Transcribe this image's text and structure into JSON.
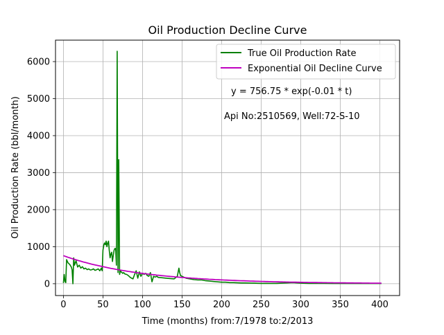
{
  "chart_data": {
    "type": "line",
    "title": "Oil Production Decline Curve",
    "xlabel": "Time (months) from:7/1978 to:2/2013",
    "ylabel": "Oil Production Rate (bbl/month)",
    "xlim": [
      -10,
      425
    ],
    "ylim": [
      -320,
      6580
    ],
    "xticks": [
      0,
      50,
      100,
      150,
      200,
      250,
      300,
      350,
      400
    ],
    "yticks": [
      0,
      1000,
      2000,
      3000,
      4000,
      5000,
      6000
    ],
    "grid": true,
    "legend_position": "top-right",
    "annotations": [
      "y = 756.75 * exp(-0.01 * t)",
      "Api No:2510569, Well:72-S-10"
    ],
    "fit": {
      "a": 756.75,
      "b": 0.01,
      "x_start": 0,
      "x_end": 402
    },
    "series": [
      {
        "name": "True Oil Production Rate",
        "color": "#008000",
        "x": [
          0,
          1,
          2,
          3,
          4,
          5,
          6,
          8,
          10,
          11,
          12,
          13,
          14,
          16,
          18,
          20,
          22,
          24,
          26,
          28,
          30,
          32,
          34,
          36,
          38,
          40,
          42,
          44,
          46,
          48,
          49,
          50,
          51,
          52,
          53,
          54,
          55,
          56,
          57,
          58,
          59,
          60,
          61,
          62,
          63,
          64,
          65,
          66,
          67,
          68,
          69,
          70,
          71,
          72,
          73,
          74,
          75,
          76,
          78,
          80,
          82,
          84,
          86,
          88,
          90,
          92,
          94,
          96,
          98,
          100,
          102,
          104,
          106,
          108,
          110,
          112,
          114,
          116,
          118,
          120,
          125,
          130,
          135,
          140,
          144,
          146,
          147,
          148,
          150,
          152,
          155,
          160,
          165,
          170,
          175,
          180,
          185,
          190,
          195,
          200,
          205,
          210,
          215,
          220,
          225,
          230,
          240,
          250,
          260,
          270,
          280,
          290,
          300,
          310,
          320,
          330,
          340,
          350,
          360,
          370,
          380,
          390,
          400,
          402
        ],
        "y": [
          20,
          250,
          60,
          30,
          650,
          600,
          560,
          520,
          450,
          380,
          0,
          700,
          500,
          620,
          450,
          500,
          420,
          460,
          400,
          420,
          380,
          400,
          370,
          380,
          400,
          360,
          380,
          400,
          350,
          420,
          350,
          900,
          1050,
          1100,
          1050,
          1150,
          1000,
          1100,
          1150,
          900,
          700,
          800,
          850,
          600,
          750,
          900,
          950,
          950,
          500,
          6280,
          300,
          3350,
          250,
          350,
          320,
          300,
          280,
          300,
          260,
          250,
          220,
          180,
          150,
          130,
          250,
          350,
          150,
          320,
          200,
          280,
          250,
          280,
          220,
          200,
          300,
          50,
          200,
          180,
          200,
          170,
          160,
          150,
          140,
          130,
          200,
          420,
          300,
          220,
          200,
          180,
          150,
          130,
          110,
          100,
          100,
          80,
          70,
          60,
          50,
          40,
          40,
          30,
          30,
          25,
          20,
          20,
          15,
          10,
          10,
          10,
          20,
          30,
          15,
          10,
          10,
          10,
          5,
          5,
          5,
          5,
          5,
          5,
          5,
          5
        ]
      },
      {
        "name": "Exponential Oil Decline Curve",
        "color": "#bf00bf"
      }
    ]
  }
}
